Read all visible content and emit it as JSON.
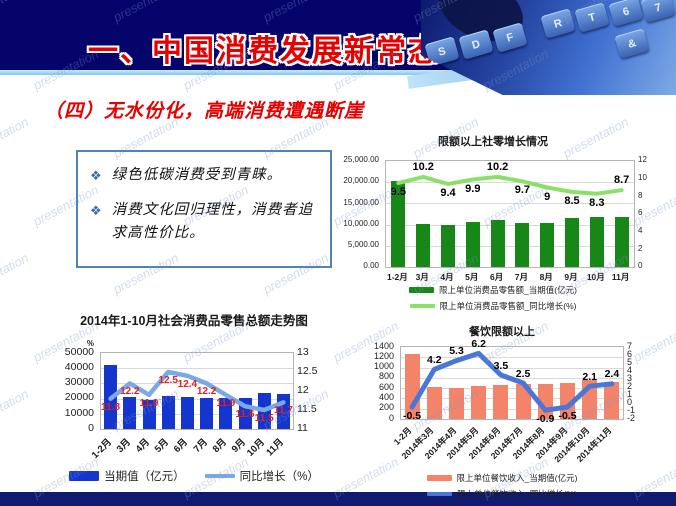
{
  "slide": {
    "header": {
      "title": "一、中国消费发展新常态"
    },
    "subtitle": "（四）无水份化，高端消费遭遇断崖",
    "watermark": "presentation",
    "bullet_marker": "❖",
    "bullets": [
      "绿色低碳消费受到青睐。",
      "消费文化回归理性，消费者追求高性价比。"
    ],
    "keyboard_keys": [
      "S",
      "D",
      "F",
      "R",
      "T",
      "6",
      "7",
      "&"
    ],
    "colors": {
      "header_navy": "#04046a",
      "footer_navy": "#101a70",
      "accent_sky": "#7fc6ee",
      "title_red": "#e60000",
      "box_border_blue": "#4f81bd",
      "bullet_blue": "#3f67b1"
    }
  },
  "chart_data": [
    {
      "type": "bar",
      "title": "限额以上社零增长情况",
      "categories": [
        "1-2月",
        "3月",
        "4月",
        "5月",
        "6月",
        "7月",
        "8月",
        "9月",
        "10月",
        "11月"
      ],
      "series": [
        {
          "name": "限上单位消费品零售额_当期值(亿元)",
          "type": "bar",
          "color": "#178717",
          "axis": "left",
          "values": [
            20200,
            10200,
            9900,
            10600,
            11100,
            10300,
            10400,
            11600,
            11700,
            11900
          ]
        },
        {
          "name": "限上单位消费品零售额_同比增长(%)",
          "type": "line",
          "color": "#8ce06a",
          "axis": "right",
          "values": [
            9.5,
            10.2,
            9.4,
            9.9,
            10.2,
            9.7,
            9.0,
            8.5,
            8.3,
            8.7
          ],
          "labels": [
            "9.5",
            "10.2",
            "9.4",
            "9.9",
            "10.2",
            "9.7",
            "9",
            "8.5",
            "8.3",
            "8.7"
          ]
        }
      ],
      "left_axis": {
        "min": 0,
        "max": 25000,
        "ticks": [
          "25,000.00",
          "20,000.00",
          "15,000.00",
          "10,000.00",
          "5,000.00",
          "0.00"
        ],
        "unit": ""
      },
      "right_axis": {
        "min": 0,
        "max": 12,
        "ticks": [
          "12",
          "10",
          "8",
          "6",
          "4",
          "2",
          "0"
        ]
      },
      "legend_position": "bottom",
      "grid": true
    },
    {
      "type": "bar",
      "title": "2014年1-10月社会消费品零售总额走势图",
      "categories": [
        "1-2月",
        "3月",
        "4月",
        "5月",
        "6月",
        "7月",
        "8月",
        "9月",
        "10月",
        "11月"
      ],
      "series": [
        {
          "name": "当期值（亿元）",
          "type": "bar",
          "color": "#1535cf",
          "axis": "left",
          "values": [
            42000,
            20800,
            19300,
            21800,
            21000,
            20400,
            20300,
            20600,
            23500,
            23300
          ]
        },
        {
          "name": "同比增长（%）",
          "type": "line",
          "color": "#7aa9e8",
          "axis": "right",
          "values": [
            11.8,
            12.2,
            11.9,
            12.5,
            12.4,
            12.2,
            11.9,
            11.6,
            11.5,
            11.7
          ],
          "labels": [
            "11.8",
            "12.2",
            "11.9",
            "12.5",
            "12.4",
            "12.2",
            "11.9",
            "11.6",
            "11.5",
            "11.7"
          ]
        }
      ],
      "left_axis": {
        "min": 0,
        "max": 50000,
        "ticks": [
          "50000",
          "40000",
          "30000",
          "20000",
          "10000",
          "0"
        ],
        "unit": "%"
      },
      "right_axis": {
        "min": 11,
        "max": 13,
        "ticks": [
          "13",
          "12.5",
          "12",
          "11.5",
          "11"
        ]
      },
      "legend_position": "bottom",
      "grid": true
    },
    {
      "type": "bar",
      "title": "餐饮限额以上",
      "categories": [
        "1-2月",
        "2014年3月",
        "2014年4月",
        "2014年5月",
        "2014年6月",
        "2014年7月",
        "2014年8月",
        "2014年9月",
        "2014年10月",
        "2014年11月"
      ],
      "series": [
        {
          "name": "限上单位餐饮收入_当期值(亿元)",
          "type": "bar",
          "color": "#f3846a",
          "axis": "left",
          "values": [
            1270,
            630,
            600,
            650,
            665,
            680,
            685,
            710,
            755,
            730
          ]
        },
        {
          "name": "限上单位餐饮收入_同比增长(%)",
          "type": "line",
          "color": "#4a77d6",
          "axis": "right",
          "values": [
            -0.5,
            4.2,
            5.3,
            6.2,
            3.5,
            2.5,
            -0.9,
            -0.5,
            2.1,
            2.4
          ],
          "labels": [
            "-0.5",
            "4.2",
            "5.3",
            "6.2",
            "3.5",
            "2.5",
            "-0.9",
            "-0.5",
            "2.1",
            "2.4"
          ]
        }
      ],
      "left_axis": {
        "min": 0,
        "max": 1400,
        "ticks": [
          "1400",
          "1200",
          "1000",
          "800",
          "600",
          "400",
          "200",
          "0"
        ],
        "unit": ""
      },
      "right_axis": {
        "min": -2,
        "max": 7,
        "ticks": [
          "7",
          "6",
          "5",
          "4",
          "3",
          "2",
          "1",
          "0",
          "-1",
          "-2"
        ]
      },
      "legend_position": "bottom",
      "grid": true
    }
  ]
}
